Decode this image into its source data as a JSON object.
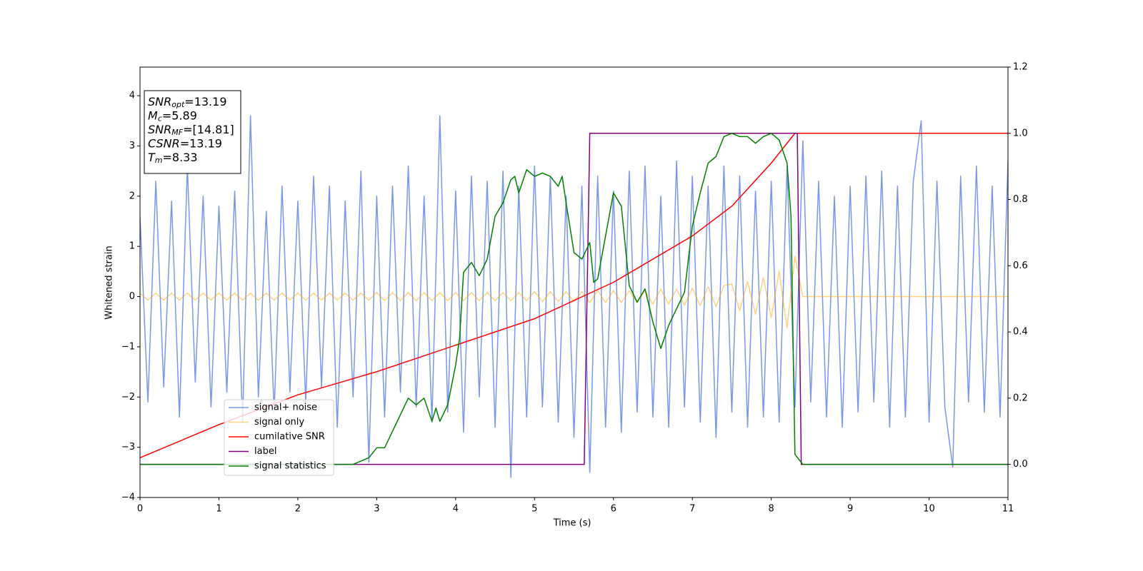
{
  "chart_data": {
    "type": "line",
    "xlabel": "Time (s)",
    "ylabel": "Whitened strain",
    "xlim": [
      0,
      11
    ],
    "ylim": [
      -4,
      4.57
    ],
    "y2lim": [
      -0.1,
      1.2
    ],
    "xticks": [
      0,
      1,
      2,
      3,
      4,
      5,
      6,
      7,
      8,
      9,
      10,
      11
    ],
    "yticks": [
      {
        "value": -4,
        "label": "−4"
      },
      {
        "value": -3,
        "label": "−3"
      },
      {
        "value": -2,
        "label": "−2"
      },
      {
        "value": -1,
        "label": "−1"
      },
      0,
      1,
      2,
      3,
      4
    ],
    "y2ticks": [
      {
        "value": 0,
        "label": "0.0"
      },
      {
        "value": 0.2,
        "label": "0.2"
      },
      {
        "value": 0.4,
        "label": "0.4"
      },
      {
        "value": 0.6,
        "label": "0.6"
      },
      {
        "value": 0.8,
        "label": "0.8"
      },
      {
        "value": 1.0,
        "label": "1.0"
      },
      {
        "value": 1.2,
        "label": "1.2"
      }
    ],
    "legend": "lower left",
    "stats": [
      {
        "name": "SNR",
        "sub": "opt",
        "value": "=13.19"
      },
      {
        "name": "M",
        "sub": "c",
        "value": "=5.89"
      },
      {
        "name": "SNR",
        "sub": "MF",
        "value": "=[14.81]"
      },
      {
        "name": "CSNR",
        "value": "=13.19"
      },
      {
        "name": "T",
        "sub": "m",
        "value": "=8.33"
      }
    ],
    "x": [
      0,
      0.1,
      0.2,
      0.3,
      0.4,
      0.5,
      0.6,
      0.7,
      0.8,
      0.9,
      1,
      1.1,
      1.2,
      1.3,
      1.4,
      1.5,
      1.6,
      1.7,
      1.8,
      1.9,
      2,
      2.1,
      2.2,
      2.3,
      2.4,
      2.5,
      2.6,
      2.7,
      2.8,
      2.9,
      3,
      3.1,
      3.2,
      3.3,
      3.4,
      3.5,
      3.6,
      3.7,
      3.8,
      3.9,
      4,
      4.1,
      4.2,
      4.3,
      4.4,
      4.5,
      4.6,
      4.7,
      4.8,
      4.9,
      5,
      5.1,
      5.2,
      5.3,
      5.4,
      5.5,
      5.6,
      5.7,
      5.8,
      5.9,
      6,
      6.1,
      6.2,
      6.3,
      6.4,
      6.5,
      6.6,
      6.7,
      6.8,
      6.9,
      7,
      7.1,
      7.2,
      7.3,
      7.4,
      7.5,
      7.6,
      7.7,
      7.8,
      7.9,
      8,
      8.1,
      8.2,
      8.3,
      8.4,
      8.5,
      8.6,
      8.7,
      8.8,
      8.9,
      9,
      9.1,
      9.2,
      9.3,
      9.4,
      9.5,
      9.6,
      9.7,
      9.8,
      9.9,
      10,
      10.1,
      10.2,
      10.3,
      10.4,
      10.5,
      10.6,
      10.7,
      10.8,
      10.9,
      11
    ],
    "series": [
      {
        "name": "signal+ noise",
        "color": "#4169e1",
        "opacity": 0.7,
        "values": [
          1.6,
          -2.1,
          2.3,
          -1.8,
          1.9,
          -2.4,
          2.6,
          -1.7,
          2.0,
          -2.2,
          1.8,
          -1.9,
          2.1,
          -2.5,
          3.6,
          -2.0,
          1.7,
          -2.3,
          2.2,
          -1.9,
          1.9,
          -2.1,
          2.4,
          -1.8,
          2.2,
          -2.6,
          1.9,
          -2.0,
          2.5,
          -3.3,
          2.0,
          -2.4,
          2.2,
          -1.9,
          2.6,
          -2.2,
          2.0,
          -2.5,
          3.6,
          -2.3,
          2.1,
          -2.7,
          2.4,
          -2.0,
          2.3,
          -2.6,
          2.5,
          -3.6,
          2.2,
          -2.4,
          2.6,
          -2.2,
          2.4,
          -2.5,
          2.0,
          -2.8,
          2.2,
          -3.5,
          2.4,
          -2.6,
          2.1,
          -2.7,
          2.5,
          -2.3,
          2.6,
          -2.4,
          2.0,
          -2.6,
          2.7,
          -2.2,
          2.4,
          -2.5,
          2.2,
          -2.8,
          2.6,
          -2.3,
          2.4,
          -2.6,
          2.1,
          -2.4,
          2.3,
          -2.5,
          2.6,
          -2.2,
          3.1,
          -2.1,
          2.3,
          -2.4,
          2.0,
          -2.6,
          2.2,
          -2.3,
          2.4,
          -2.1,
          2.5,
          -2.6,
          2.2,
          -2.4,
          2.3,
          3.5,
          -2.5,
          2.3,
          -2.2,
          -3.4,
          2.4,
          -2.1,
          2.6,
          -2.3,
          2.2,
          -2.4,
          2.7
        ]
      },
      {
        "name": "signal only",
        "color": "#ffa500",
        "opacity": 0.5,
        "values": [
          0.07,
          -0.07,
          0.07,
          -0.07,
          0.07,
          -0.07,
          0.07,
          -0.07,
          0.07,
          -0.07,
          0.07,
          -0.07,
          0.07,
          -0.07,
          0.07,
          -0.07,
          0.07,
          -0.07,
          0.07,
          -0.07,
          0.07,
          -0.07,
          0.07,
          -0.07,
          0.07,
          -0.07,
          0.07,
          -0.07,
          0.07,
          -0.07,
          0.08,
          -0.08,
          0.08,
          -0.08,
          0.08,
          -0.08,
          0.08,
          -0.08,
          0.08,
          -0.08,
          0.08,
          -0.08,
          0.08,
          -0.08,
          0.08,
          -0.08,
          0.08,
          -0.08,
          0.08,
          -0.08,
          0.1,
          -0.1,
          0.1,
          -0.1,
          0.1,
          -0.1,
          0.1,
          -0.12,
          0.12,
          -0.12,
          0.12,
          -0.12,
          0.12,
          -0.12,
          0.12,
          -0.15,
          0.15,
          -0.15,
          0.15,
          -0.17,
          0.17,
          -0.18,
          0.2,
          -0.2,
          0.22,
          0.25,
          -0.28,
          0.3,
          -0.35,
          0.38,
          -0.42,
          0.5,
          -0.62,
          0.8,
          0,
          0,
          0,
          0,
          0,
          0,
          0,
          0,
          0,
          0,
          0,
          0,
          0,
          0,
          0,
          0,
          0,
          0,
          0,
          0,
          0,
          0,
          0,
          0,
          0,
          0,
          0
        ]
      },
      {
        "name": "cumilative SNR",
        "color": "#ff0000",
        "axis": "y2",
        "x": [
          0,
          0.5,
          1,
          2,
          3,
          4,
          5,
          6,
          7,
          7.5,
          8,
          8.3,
          8.33,
          11
        ],
        "values": [
          0.02,
          0.07,
          0.12,
          0.21,
          0.28,
          0.36,
          0.44,
          0.55,
          0.69,
          0.78,
          0.91,
          1.0,
          1.0,
          1.0
        ]
      },
      {
        "name": "label",
        "color": "#800080",
        "axis": "y2",
        "x": [
          0,
          5.63,
          5.7,
          8.33,
          8.38,
          11
        ],
        "values": [
          0,
          0,
          1,
          1,
          0,
          0
        ]
      },
      {
        "name": "signal statistics",
        "color": "#008000",
        "axis": "y2",
        "x": [
          0,
          2.7,
          2.9,
          3.0,
          3.1,
          3.2,
          3.3,
          3.4,
          3.5,
          3.6,
          3.7,
          3.75,
          3.8,
          3.9,
          4.0,
          4.05,
          4.1,
          4.2,
          4.3,
          4.4,
          4.5,
          4.6,
          4.7,
          4.75,
          4.8,
          4.9,
          5.0,
          5.1,
          5.2,
          5.3,
          5.35,
          5.4,
          5.5,
          5.6,
          5.7,
          5.75,
          5.8,
          5.9,
          6.0,
          6.1,
          6.2,
          6.3,
          6.4,
          6.5,
          6.6,
          6.7,
          6.8,
          6.9,
          7.0,
          7.1,
          7.2,
          7.3,
          7.4,
          7.5,
          7.6,
          7.7,
          7.8,
          7.9,
          8.0,
          8.1,
          8.2,
          8.25,
          8.3,
          8.4,
          11
        ],
        "values": [
          0,
          0,
          0.02,
          0.05,
          0.05,
          0.1,
          0.15,
          0.2,
          0.18,
          0.2,
          0.13,
          0.17,
          0.13,
          0.18,
          0.3,
          0.38,
          0.58,
          0.61,
          0.57,
          0.62,
          0.75,
          0.79,
          0.86,
          0.87,
          0.82,
          0.89,
          0.87,
          0.88,
          0.87,
          0.84,
          0.87,
          0.79,
          0.64,
          0.62,
          0.67,
          0.55,
          0.56,
          0.69,
          0.82,
          0.78,
          0.54,
          0.49,
          0.53,
          0.43,
          0.35,
          0.42,
          0.47,
          0.52,
          0.72,
          0.82,
          0.91,
          0.93,
          0.99,
          1.0,
          0.99,
          0.99,
          0.97,
          0.99,
          1.0,
          0.98,
          0.91,
          0.75,
          0.03,
          0,
          0
        ]
      }
    ]
  }
}
